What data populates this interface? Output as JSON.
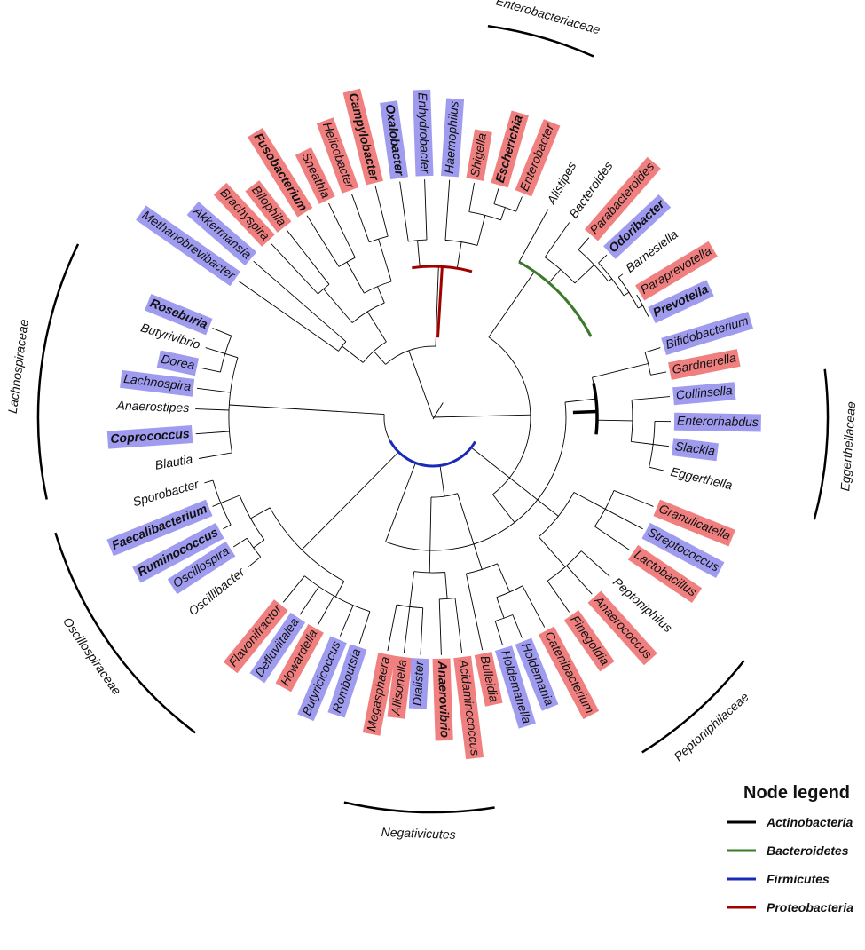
{
  "colors": {
    "red_highlight": "#f08080",
    "blue_highlight": "#9f9cf0",
    "branch": "#000000",
    "actinobacteria": "#000000",
    "bacteroidetes": "#3a7a2a",
    "firmicutes": "#1a2ab8",
    "proteobacteria": "#a00000"
  },
  "taxa": [
    {
      "name": "Roseburia",
      "highlight": "blue",
      "bold": true,
      "angle": 202
    },
    {
      "name": "Butyrivibrio",
      "highlight": "none",
      "bold": false,
      "angle": 197
    },
    {
      "name": "Dorea",
      "highlight": "blue",
      "bold": false,
      "angle": 192
    },
    {
      "name": "Lachnospira",
      "highlight": "blue",
      "bold": false,
      "angle": 187
    },
    {
      "name": "Anaerostipes",
      "highlight": "none",
      "bold": false,
      "angle": 182
    },
    {
      "name": "Coprococcus",
      "highlight": "blue",
      "bold": true,
      "angle": 176
    },
    {
      "name": "Blautia",
      "highlight": "none",
      "bold": false,
      "angle": 170
    },
    {
      "name": "Sporobacter",
      "highlight": "none",
      "bold": false,
      "angle": 164
    },
    {
      "name": "Faecalibacterium",
      "highlight": "blue",
      "bold": true,
      "angle": 158
    },
    {
      "name": "Ruminococcus",
      "highlight": "blue",
      "bold": true,
      "angle": 152
    },
    {
      "name": "Oscillospira",
      "highlight": "blue",
      "bold": false,
      "angle": 147
    },
    {
      "name": "Oscillibacter",
      "highlight": "none",
      "bold": false,
      "angle": 141
    },
    {
      "name": "Flavonifractor",
      "highlight": "red",
      "bold": false,
      "angle": 129
    },
    {
      "name": "Defluviitalea",
      "highlight": "blue",
      "bold": false,
      "angle": 124
    },
    {
      "name": "Howardella",
      "highlight": "red",
      "bold": false,
      "angle": 119
    },
    {
      "name": "Butyricicoccus",
      "highlight": "blue",
      "bold": false,
      "angle": 113
    },
    {
      "name": "Romboutsia",
      "highlight": "blue",
      "bold": false,
      "angle": 108
    },
    {
      "name": "Megasphaera",
      "highlight": "red",
      "bold": false,
      "angle": 101
    },
    {
      "name": "Allisonella",
      "highlight": "red",
      "bold": false,
      "angle": 97
    },
    {
      "name": "Dialister",
      "highlight": "blue",
      "bold": false,
      "angle": 93
    },
    {
      "name": "Anaerovibrio",
      "highlight": "red",
      "bold": true,
      "angle": 88
    },
    {
      "name": "Acidaminococcus",
      "highlight": "red",
      "bold": false,
      "angle": 83
    },
    {
      "name": "Bulleidia",
      "highlight": "red",
      "bold": false,
      "angle": 78
    },
    {
      "name": "Holdemanella",
      "highlight": "blue",
      "bold": false,
      "angle": 73
    },
    {
      "name": "Holdemania",
      "highlight": "blue",
      "bold": false,
      "angle": 68
    },
    {
      "name": "Catenibacterium",
      "highlight": "red",
      "bold": false,
      "angle": 62
    },
    {
      "name": "Finegoldia",
      "highlight": "red",
      "bold": false,
      "angle": 55
    },
    {
      "name": "Anaerococcus",
      "highlight": "red",
      "bold": false,
      "angle": 48
    },
    {
      "name": "Peptoniphilus",
      "highlight": "none",
      "bold": false,
      "angle": 42
    },
    {
      "name": "Lactobacillus",
      "highlight": "red",
      "bold": false,
      "angle": 34
    },
    {
      "name": "Streptococcus",
      "highlight": "blue",
      "bold": false,
      "angle": 28
    },
    {
      "name": "Granulicatella",
      "highlight": "red",
      "bold": false,
      "angle": 22
    },
    {
      "name": "Eggerthella",
      "highlight": "none",
      "bold": false,
      "angle": 13
    },
    {
      "name": "Slackia",
      "highlight": "blue",
      "bold": false,
      "angle": 7
    },
    {
      "name": "Enterorhabdus",
      "highlight": "blue",
      "bold": false,
      "angle": 1
    },
    {
      "name": "Collinsella",
      "highlight": "blue",
      "bold": false,
      "angle": -5
    },
    {
      "name": "Gardnerella",
      "highlight": "red",
      "bold": false,
      "angle": -11
    },
    {
      "name": "Bifidobacterium",
      "highlight": "blue",
      "bold": false,
      "angle": -17
    },
    {
      "name": "Prevotella",
      "highlight": "blue",
      "bold": true,
      "angle": -25
    },
    {
      "name": "Paraprevotella",
      "highlight": "red",
      "bold": false,
      "angle": -31
    },
    {
      "name": "Barnesiella",
      "highlight": "none",
      "bold": false,
      "angle": -37
    },
    {
      "name": "Odoribacter",
      "highlight": "blue",
      "bold": true,
      "angle": -43
    },
    {
      "name": "Parabacteroides",
      "highlight": "red",
      "bold": false,
      "angle": -49
    },
    {
      "name": "Bacteroides",
      "highlight": "none",
      "bold": false,
      "angle": -55
    },
    {
      "name": "Alistipes",
      "highlight": "none",
      "bold": false,
      "angle": -61
    },
    {
      "name": "Enterobacter",
      "highlight": "red",
      "bold": false,
      "angle": -68
    },
    {
      "name": "Escherichia",
      "highlight": "red",
      "bold": true,
      "angle": -74
    },
    {
      "name": "Shigella",
      "highlight": "red",
      "bold": false,
      "angle": -80
    },
    {
      "name": "Haemophilus",
      "highlight": "blue",
      "bold": false,
      "angle": -86
    },
    {
      "name": "Enhydrobacter",
      "highlight": "blue",
      "bold": false,
      "angle": -92
    },
    {
      "name": "Oxalobacter",
      "highlight": "blue",
      "bold": true,
      "angle": -98
    },
    {
      "name": "Campylobacter",
      "highlight": "red",
      "bold": true,
      "angle": -104
    },
    {
      "name": "Helicobacter",
      "highlight": "red",
      "bold": false,
      "angle": -110
    },
    {
      "name": "Sneathia",
      "highlight": "red",
      "bold": false,
      "angle": -116
    },
    {
      "name": "Fusobacterium",
      "highlight": "red",
      "bold": true,
      "angle": -122
    },
    {
      "name": "Bilophila",
      "highlight": "red",
      "bold": false,
      "angle": -128
    },
    {
      "name": "Brachyspira",
      "highlight": "red",
      "bold": false,
      "angle": -133
    },
    {
      "name": "Akkermansia",
      "highlight": "blue",
      "bold": false,
      "angle": -139
    },
    {
      "name": "Methanobrevibacter",
      "highlight": "blue",
      "bold": false,
      "angle": -145
    }
  ],
  "families": [
    {
      "name": "Enterobacteriaceae",
      "start": -82,
      "end": -66
    },
    {
      "name": "Lachnospiraceae",
      "start": 168,
      "end": 206
    },
    {
      "name": "Oscillospiraceae",
      "start": 127,
      "end": 163
    },
    {
      "name": "Negativicutes",
      "start": 81,
      "end": 103
    },
    {
      "name": "Peptoniphilaceae",
      "start": 38,
      "end": 58
    },
    {
      "name": "Eggerthellaceae",
      "start": -7,
      "end": 15
    }
  ],
  "legend": {
    "title": "Node legend",
    "items": [
      {
        "label": "Actinobacteria",
        "color": "#000000"
      },
      {
        "label": "Bacteroidetes",
        "color": "#3a7a2a"
      },
      {
        "label": "Firmicutes",
        "color": "#1a2ab8"
      },
      {
        "label": "Proteobacteria",
        "color": "#a00000"
      }
    ]
  }
}
